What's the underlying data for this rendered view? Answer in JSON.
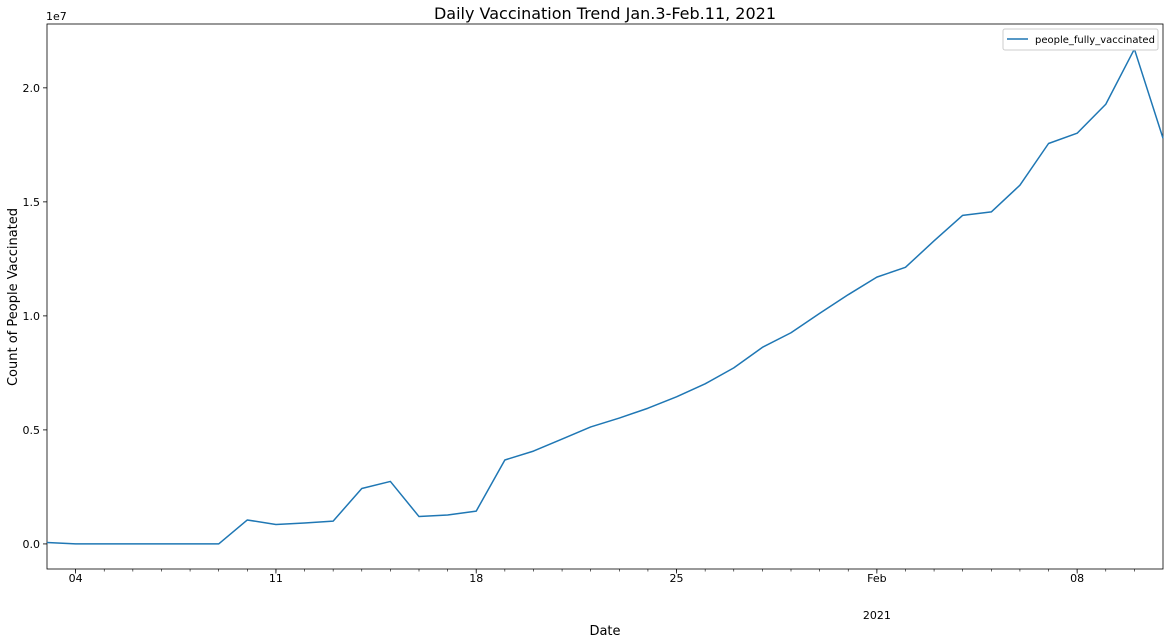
{
  "chart_data": {
    "type": "line",
    "title": "Daily Vaccination Trend Jan.3-Feb.11, 2021",
    "xlabel": "Date",
    "ylabel": "Count of People Vaccinated",
    "y_offset_label": "1e7",
    "legend_position": "top-right",
    "grid": false,
    "xlim": [
      "2021-01-03",
      "2021-02-11"
    ],
    "ylim": [
      -1100000,
      22800000
    ],
    "yticks": [
      {
        "value": 0,
        "label": "0.0"
      },
      {
        "value": 5000000,
        "label": "0.5"
      },
      {
        "value": 10000000,
        "label": "1.0"
      },
      {
        "value": 15000000,
        "label": "1.5"
      },
      {
        "value": 20000000,
        "label": "2.0"
      }
    ],
    "xticks": [
      {
        "date": "2021-01-04",
        "label": "04"
      },
      {
        "date": "2021-01-11",
        "label": "11"
      },
      {
        "date": "2021-01-18",
        "label": "18"
      },
      {
        "date": "2021-01-25",
        "label": "25"
      },
      {
        "date": "2021-02-01",
        "label": "Feb"
      },
      {
        "date": "2021-02-08",
        "label": "08"
      }
    ],
    "xtick_sublabels": [
      {
        "date": "2021-02-01",
        "label": "2021"
      }
    ],
    "series": [
      {
        "name": "people_fully_vaccinated",
        "color": "#1f77b4",
        "x": [
          "2021-01-03",
          "2021-01-04",
          "2021-01-05",
          "2021-01-06",
          "2021-01-07",
          "2021-01-08",
          "2021-01-09",
          "2021-01-10",
          "2021-01-11",
          "2021-01-12",
          "2021-01-13",
          "2021-01-14",
          "2021-01-15",
          "2021-01-16",
          "2021-01-17",
          "2021-01-18",
          "2021-01-19",
          "2021-01-20",
          "2021-01-21",
          "2021-01-22",
          "2021-01-23",
          "2021-01-24",
          "2021-01-25",
          "2021-01-26",
          "2021-01-27",
          "2021-01-28",
          "2021-01-29",
          "2021-01-30",
          "2021-01-31",
          "2021-02-01",
          "2021-02-02",
          "2021-02-03",
          "2021-02-04",
          "2021-02-05",
          "2021-02-06",
          "2021-02-07",
          "2021-02-08",
          "2021-02-09",
          "2021-02-10",
          "2021-02-11"
        ],
        "values": [
          60000,
          0,
          0,
          0,
          0,
          0,
          0,
          1050000,
          850000,
          920000,
          1000000,
          2430000,
          2740000,
          1200000,
          1270000,
          1440000,
          3680000,
          4070000,
          4600000,
          5130000,
          5520000,
          5950000,
          6450000,
          7020000,
          7720000,
          8620000,
          9260000,
          10110000,
          10930000,
          11700000,
          12130000,
          13290000,
          14410000,
          14560000,
          15730000,
          17560000,
          18010000,
          19280000,
          21700000,
          17790000
        ]
      }
    ]
  }
}
